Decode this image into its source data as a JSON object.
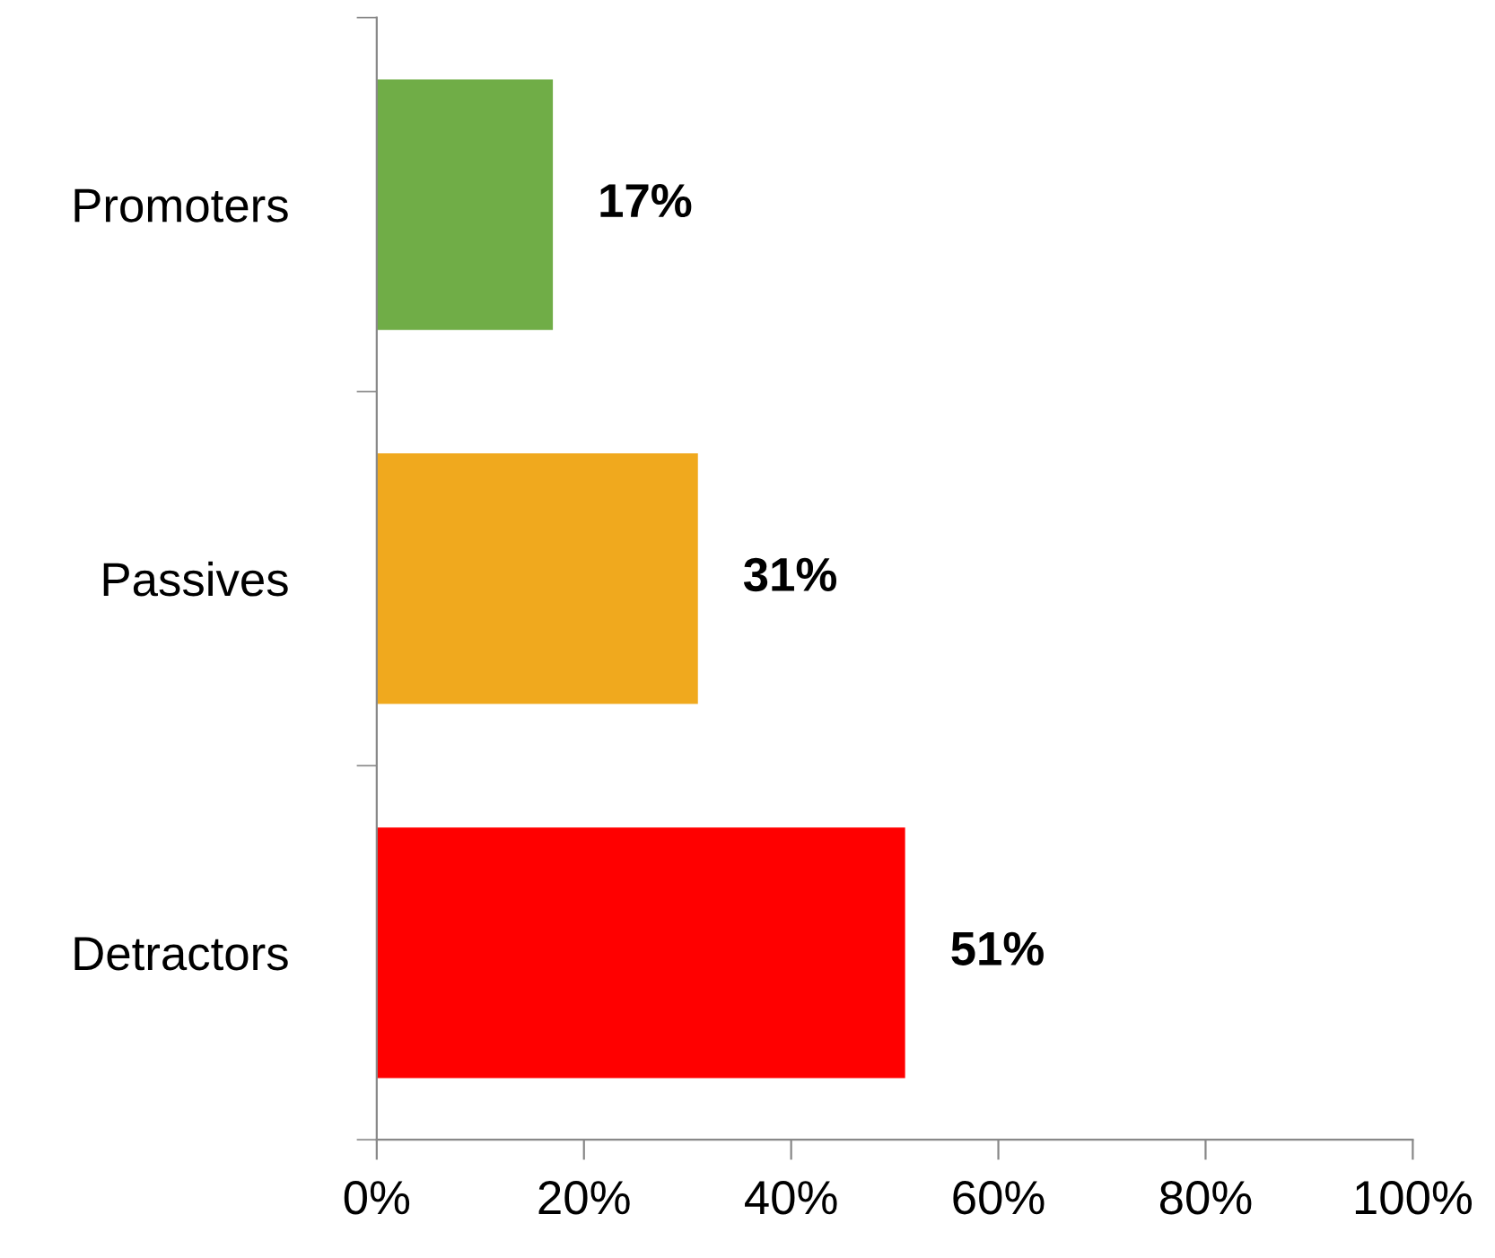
{
  "chart_data": {
    "type": "bar",
    "orientation": "horizontal",
    "categories": [
      "Promoters",
      "Passives",
      "Detractors"
    ],
    "values": [
      17,
      31,
      51
    ],
    "colors": [
      "#70ad47",
      "#f0a91e",
      "#ff0000"
    ],
    "value_labels": [
      "17%",
      "31%",
      "51%"
    ],
    "xlim": [
      0,
      100
    ],
    "xticks": [
      {
        "value": 0,
        "label": "0%"
      },
      {
        "value": 20,
        "label": "20%"
      },
      {
        "value": 40,
        "label": "40%"
      },
      {
        "value": 60,
        "label": "60%"
      },
      {
        "value": 80,
        "label": "80%"
      },
      {
        "value": 100,
        "label": "100%"
      }
    ],
    "grid": false,
    "legend": false
  }
}
